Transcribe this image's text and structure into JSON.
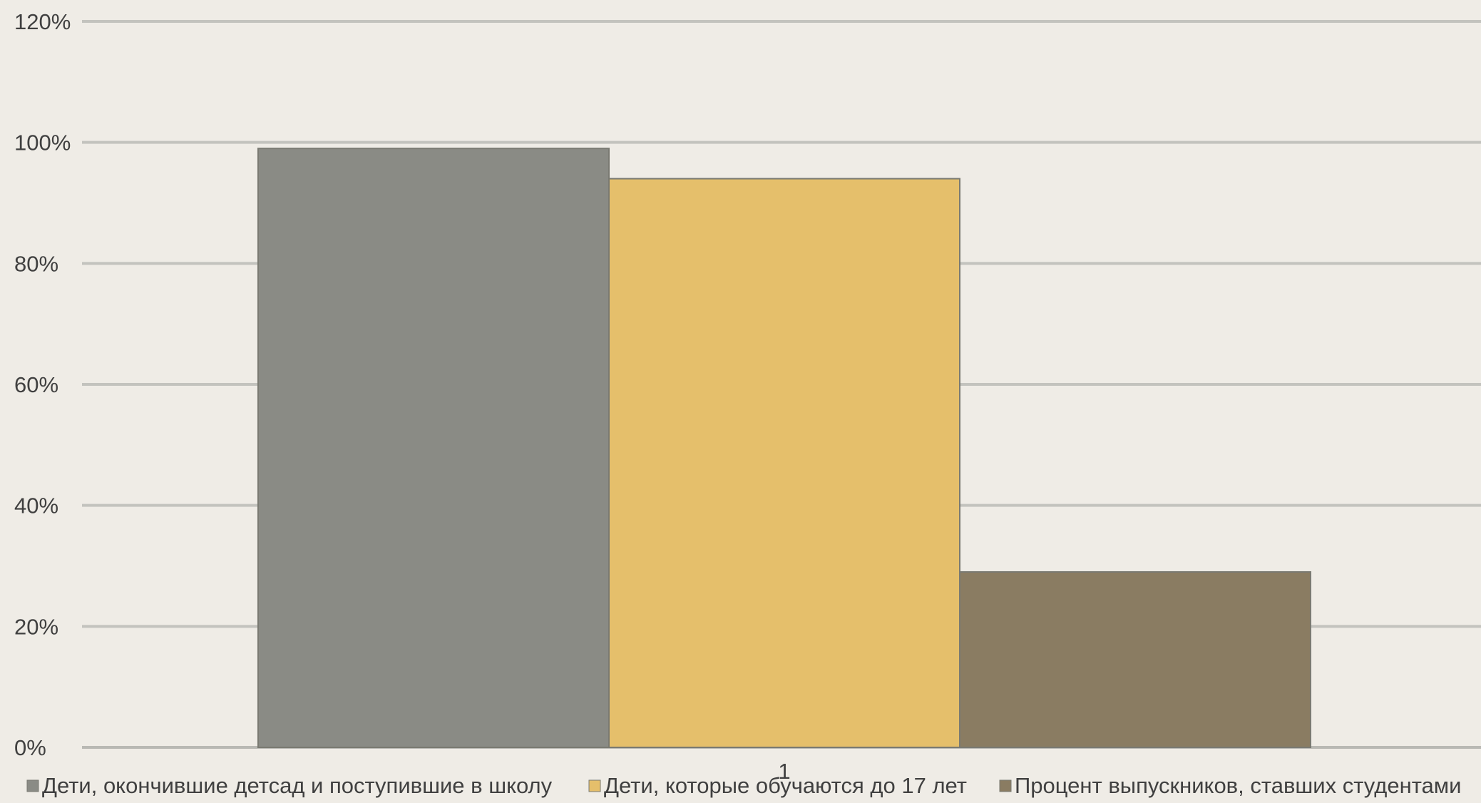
{
  "chart_data": {
    "type": "bar",
    "categories": [
      "1"
    ],
    "series": [
      {
        "name": "Дети, окончившие детсад и поступившие в школу",
        "values": [
          99
        ],
        "color": "#8a8b85"
      },
      {
        "name": "Дети, которые обучаются до 17 лет",
        "values": [
          94
        ],
        "color": "#e5bf6b"
      },
      {
        "name": "Процент выпускников, ставших студентами",
        "values": [
          29
        ],
        "color": "#8a7c62"
      }
    ],
    "ylim": [
      0,
      120
    ],
    "yticks": [
      0,
      20,
      40,
      60,
      80,
      100,
      120
    ],
    "ytick_suffix": "%",
    "grid": true,
    "legend": "bottom",
    "title": "",
    "xlabel": "",
    "ylabel": ""
  }
}
